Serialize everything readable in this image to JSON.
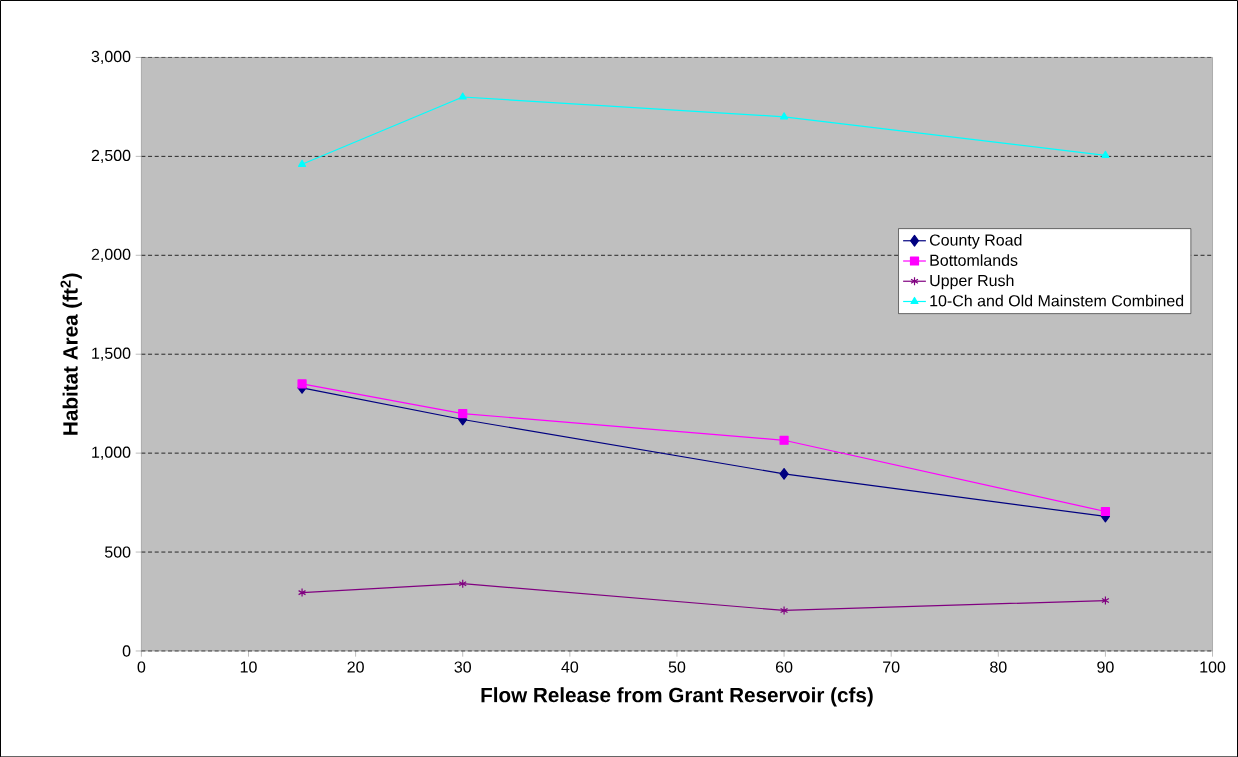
{
  "chart_data": {
    "type": "line",
    "xlabel": "Flow Release from Grant Reservoir (cfs)",
    "ylabel": "Habitat Area (ft$^{2}$)",
    "xlim": [
      0,
      100
    ],
    "xticks": [
      0,
      10,
      20,
      30,
      40,
      50,
      60,
      70,
      80,
      90,
      100
    ],
    "ylim": [
      0,
      3000
    ],
    "yticks": [
      0,
      500,
      {
        "value": 1000,
        "label": "1,000"
      },
      {
        "value": 1500,
        "label": "1,500"
      },
      {
        "value": 2000,
        "label": "2,000"
      },
      {
        "value": 2500,
        "label": "2,500"
      },
      {
        "value": 3000,
        "label": "3,000"
      }
    ],
    "grid": "y",
    "legend": "right",
    "line_style": "solid",
    "x": [
      15,
      30,
      60,
      90
    ],
    "series": [
      {
        "name": "County Road",
        "color": "#000080",
        "marker": "diamond",
        "values": [
          1330,
          1170,
          895,
          680
        ]
      },
      {
        "name": "Bottomlands",
        "color": "#ff00ff",
        "marker": "square",
        "values": [
          1350,
          1200,
          1065,
          705
        ]
      },
      {
        "name": "Upper Rush",
        "color": "#800080",
        "marker": "cross",
        "values": [
          295,
          340,
          205,
          255
        ]
      },
      {
        "name": "10-Ch and Old Mainstem Combined",
        "color": "#00ffff",
        "marker": "triangle",
        "values": [
          2460,
          2800,
          2700,
          2505
        ]
      }
    ]
  }
}
